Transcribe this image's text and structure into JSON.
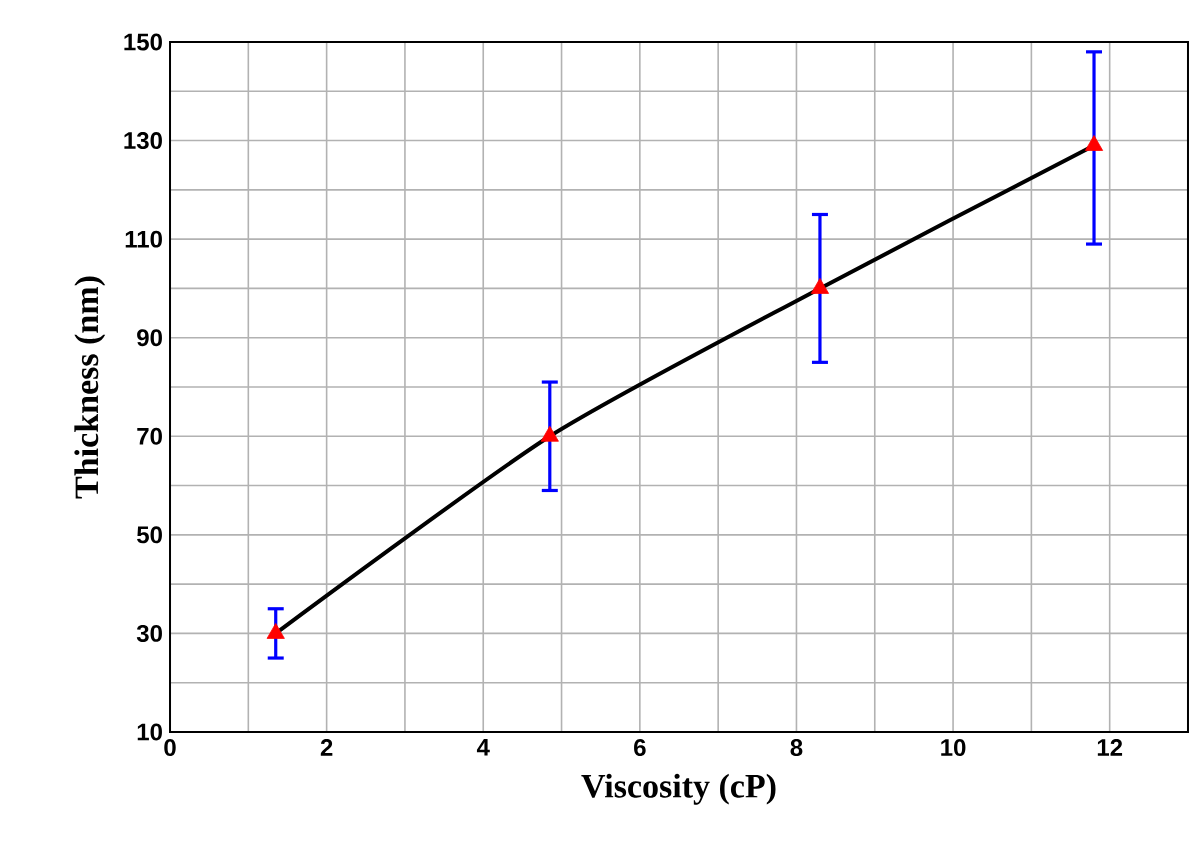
{
  "chart_data": {
    "type": "line",
    "xlabel": "Viscosity (cP)",
    "ylabel": "Thickness (nm)",
    "xlim": [
      0,
      13
    ],
    "xticks": [
      0,
      2,
      4,
      6,
      8,
      10,
      12
    ],
    "ylim": [
      10,
      150
    ],
    "yticks": [
      10,
      30,
      50,
      70,
      90,
      110,
      130,
      150
    ],
    "grid": true,
    "marker": "triangle",
    "line_style": "solid",
    "series": [
      {
        "color": "#000000",
        "colors": [
          "#ff0000",
          "#ff0000",
          "#ff0000",
          "#ff0000"
        ],
        "x": [
          1.35,
          4.85,
          8.3,
          11.8
        ],
        "values": [
          30,
          70,
          100,
          129
        ],
        "errors": [
          [
            25,
            35
          ],
          [
            59,
            81
          ],
          [
            85,
            115
          ],
          [
            109,
            148
          ]
        ]
      }
    ]
  }
}
